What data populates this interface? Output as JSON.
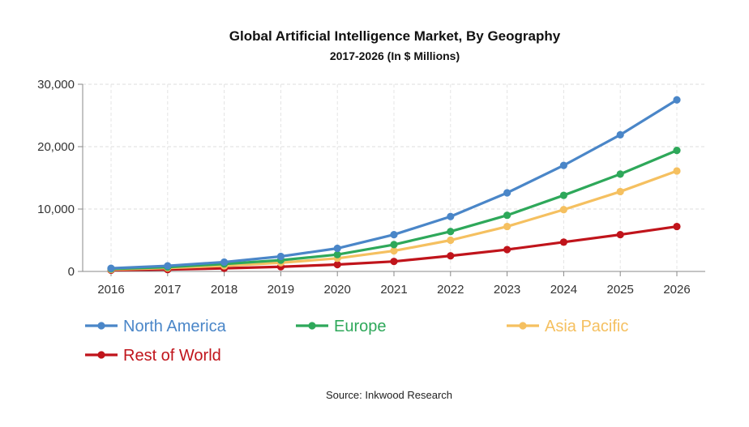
{
  "chart_data": {
    "type": "line",
    "title": "Global Artificial Intelligence Market, By Geography",
    "subtitle": "2017-2026 (In $ Millions)",
    "source": "Source: Inkwood Research",
    "x": [
      "2016",
      "2017",
      "2018",
      "2019",
      "2020",
      "2021",
      "2022",
      "2023",
      "2024",
      "2025",
      "2026"
    ],
    "ylim": [
      0,
      30000
    ],
    "yticks": [
      0,
      10000,
      20000,
      30000
    ],
    "ytick_labels": [
      "0",
      "10,000",
      "20,000",
      "30,000"
    ],
    "grid": true,
    "legend_position": "bottom",
    "series": [
      {
        "name": "North America",
        "color": "#4a86c8",
        "values": [
          500,
          900,
          1500,
          2400,
          3700,
          5900,
          8800,
          12600,
          17000,
          21900,
          27500
        ]
      },
      {
        "name": "Europe",
        "color": "#2ea85a",
        "values": [
          400,
          700,
          1200,
          1800,
          2700,
          4300,
          6400,
          9000,
          12200,
          15600,
          19400
        ]
      },
      {
        "name": "Asia Pacific",
        "color": "#f5c060",
        "values": [
          300,
          550,
          900,
          1400,
          2100,
          3300,
          5000,
          7200,
          9900,
          12800,
          16100
        ]
      },
      {
        "name": "Rest of World",
        "color": "#c0141b",
        "values": [
          200,
          300,
          500,
          750,
          1100,
          1600,
          2500,
          3500,
          4700,
          5900,
          7200
        ]
      }
    ]
  }
}
